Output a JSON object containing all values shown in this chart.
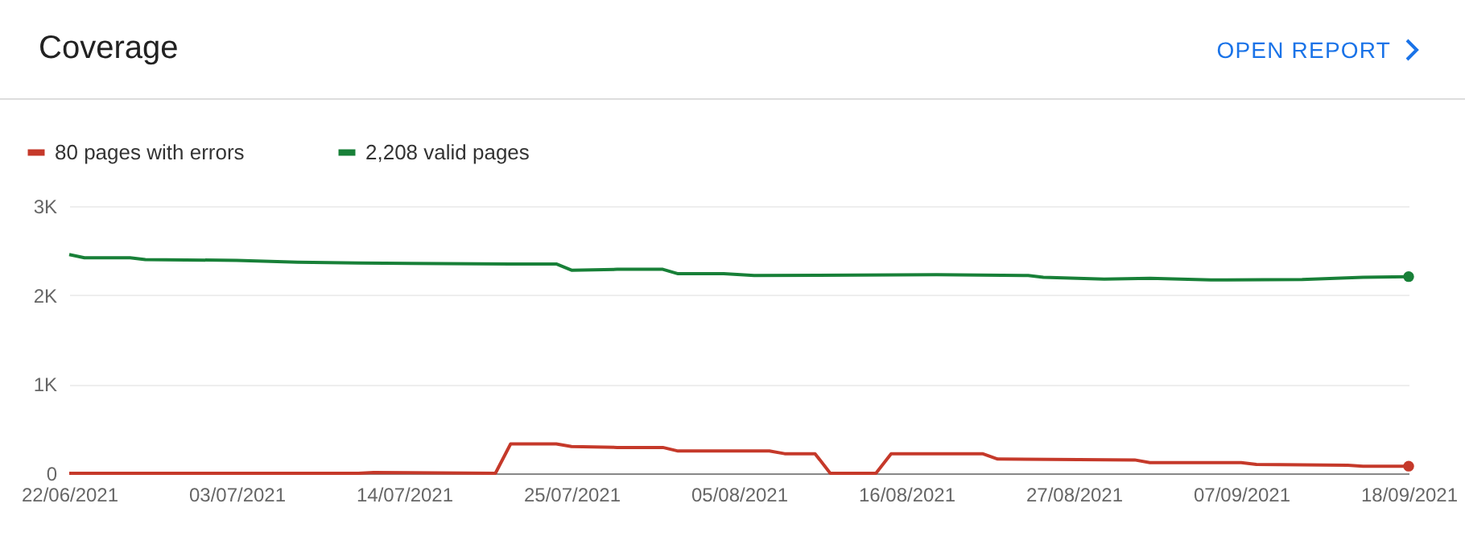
{
  "chart_data": {
    "type": "line",
    "title": "Coverage",
    "annotations": [
      "OPEN REPORT"
    ],
    "legend": "top left",
    "grid": "y",
    "xlim": [
      "2021-06-22",
      "2021-09-18"
    ],
    "xticks": [
      {
        "value": "2021-06-22",
        "label": "22/06/2021"
      },
      {
        "value": "2021-07-03",
        "label": "03/07/2021"
      },
      {
        "value": "2021-07-14",
        "label": "14/07/2021"
      },
      {
        "value": "2021-07-25",
        "label": "25/07/2021"
      },
      {
        "value": "2021-08-05",
        "label": "05/08/2021"
      },
      {
        "value": "2021-08-16",
        "label": "16/08/2021"
      },
      {
        "value": "2021-08-27",
        "label": "27/08/2021"
      },
      {
        "value": "2021-09-07",
        "label": "07/09/2021"
      },
      {
        "value": "2021-09-18",
        "label": "18/09/2021"
      }
    ],
    "ylim": [
      0,
      3000
    ],
    "yticks": [
      0,
      {
        "value": 1000,
        "label": "1K"
      },
      {
        "value": 2000,
        "label": "2K"
      },
      {
        "value": 3000,
        "label": "3K"
      }
    ],
    "series": [
      {
        "name": "80 pages with errors",
        "color": "#c5392a",
        "x": [
          "2021-06-22",
          "2021-07-11",
          "2021-07-12",
          "2021-07-20",
          "2021-07-21",
          "2021-07-24",
          "2021-07-25",
          "2021-07-28",
          "2021-07-31",
          "2021-08-01",
          "2021-08-07",
          "2021-08-08",
          "2021-08-10",
          "2021-08-11",
          "2021-08-14",
          "2021-08-15",
          "2021-08-21",
          "2021-08-22",
          "2021-08-31",
          "2021-09-01",
          "2021-09-07",
          "2021-09-08",
          "2021-09-14",
          "2021-09-15",
          "2021-09-18"
        ],
        "values": [
          0,
          0,
          10,
          0,
          330,
          330,
          300,
          290,
          290,
          250,
          250,
          220,
          220,
          0,
          0,
          220,
          220,
          160,
          150,
          120,
          120,
          100,
          90,
          80,
          80
        ]
      },
      {
        "name": "2,208 valid pages",
        "color": "#188038",
        "x": [
          "2021-06-22",
          "2021-06-23",
          "2021-06-26",
          "2021-06-27",
          "2021-07-03",
          "2021-07-07",
          "2021-07-11",
          "2021-07-21",
          "2021-07-24",
          "2021-07-25",
          "2021-07-28",
          "2021-07-31",
          "2021-08-01",
          "2021-08-04",
          "2021-08-06",
          "2021-08-18",
          "2021-08-24",
          "2021-08-25",
          "2021-08-29",
          "2021-09-01",
          "2021-09-05",
          "2021-09-11",
          "2021-09-15",
          "2021-09-18"
        ],
        "values": [
          2455,
          2420,
          2420,
          2400,
          2390,
          2370,
          2360,
          2350,
          2350,
          2280,
          2290,
          2290,
          2240,
          2240,
          2220,
          2230,
          2220,
          2200,
          2180,
          2190,
          2170,
          2175,
          2200,
          2208
        ]
      }
    ]
  }
}
